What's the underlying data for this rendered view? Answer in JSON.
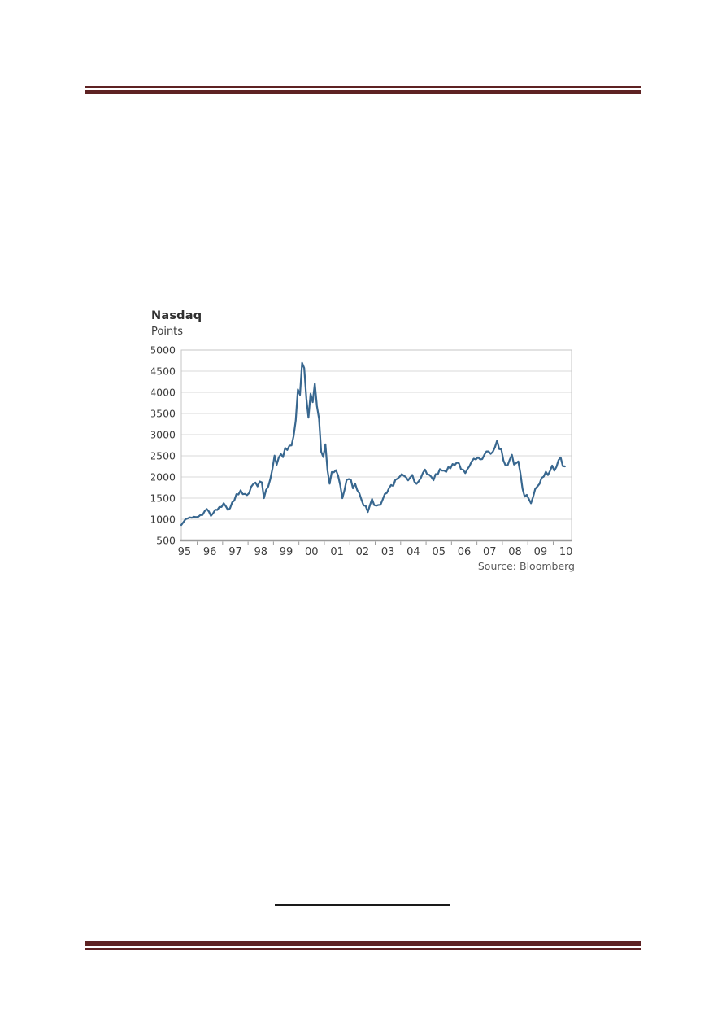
{
  "page": {
    "header_rule_color": "#5e2223",
    "footer_rule_color": "#5e2223",
    "footnote_rule_color": "#1a1a1a"
  },
  "chart": {
    "title": "Nasdaq",
    "units_label": "Points",
    "source": "Source: Bloomberg"
  },
  "chart_data": {
    "type": "line",
    "title": "Nasdaq",
    "ylabel": "Points",
    "source": "Source: Bloomberg",
    "grid": "horizontal",
    "legend_position": "none",
    "ylim": [
      500,
      5000
    ],
    "y_tick_step": 500,
    "x_domain": [
      1995.375,
      2010.72
    ],
    "x_tick_labels": [
      "95",
      "96",
      "97",
      "98",
      "99",
      "00",
      "01",
      "02",
      "03",
      "04",
      "05",
      "06",
      "07",
      "08",
      "09",
      "10"
    ],
    "line_color": "#38678f",
    "gridline_color": "#d9d9d9",
    "border_color": "#c6c6c6",
    "axis_color": "#9b9b9b",
    "tick_label_color": "#3d3d3d",
    "series": [
      {
        "name": "Nasdaq Composite (points)",
        "color": "#38678f",
        "x_start": 1995.375,
        "interval_years": 0.0833333,
        "values": [
          864,
          933,
          1001,
          1020,
          1043,
          1036,
          1059,
          1052,
          1059,
          1100,
          1101,
          1190,
          1243,
          1185,
          1080,
          1141,
          1226,
          1221,
          1292,
          1291,
          1379,
          1309,
          1221,
          1260,
          1400,
          1442,
          1593,
          1587,
          1685,
          1593,
          1600,
          1570,
          1619,
          1770,
          1835,
          1868,
          1778,
          1894,
          1872,
          1499,
          1693,
          1771,
          1949,
          2192,
          2505,
          2288,
          2461,
          2542,
          2470,
          2686,
          2638,
          2739,
          2746,
          2966,
          3336,
          4069,
          3940,
          4697,
          4573,
          3861,
          3401,
          3966,
          3767,
          4206,
          3673,
          3370,
          2598,
          2471,
          2773,
          2152,
          1840,
          2116,
          2110,
          2161,
          2027,
          1805,
          1498,
          1690,
          1931,
          1950,
          1934,
          1731,
          1845,
          1688,
          1616,
          1463,
          1328,
          1315,
          1172,
          1330,
          1479,
          1336,
          1321,
          1338,
          1341,
          1464,
          1596,
          1623,
          1735,
          1810,
          1787,
          1932,
          1960,
          2003,
          2066,
          2030,
          1994,
          1920,
          1987,
          2048,
          1887,
          1838,
          1897,
          1975,
          2097,
          2175,
          2062,
          2052,
          1999,
          1922,
          2068,
          2057,
          2185,
          2152,
          2152,
          2120,
          2233,
          2205,
          2306,
          2281,
          2340,
          2323,
          2179,
          2172,
          2091,
          2184,
          2258,
          2367,
          2432,
          2415,
          2464,
          2416,
          2422,
          2525,
          2605,
          2603,
          2546,
          2596,
          2702,
          2859,
          2661,
          2652,
          2390,
          2271,
          2279,
          2413,
          2523,
          2293,
          2326,
          2368,
          2092,
          1721,
          1536,
          1577,
          1476,
          1378,
          1529,
          1717,
          1774,
          1835,
          1979,
          2009,
          2122,
          2045,
          2145,
          2269,
          2147,
          2238,
          2398,
          2461,
          2257,
          2250
        ]
      }
    ]
  }
}
